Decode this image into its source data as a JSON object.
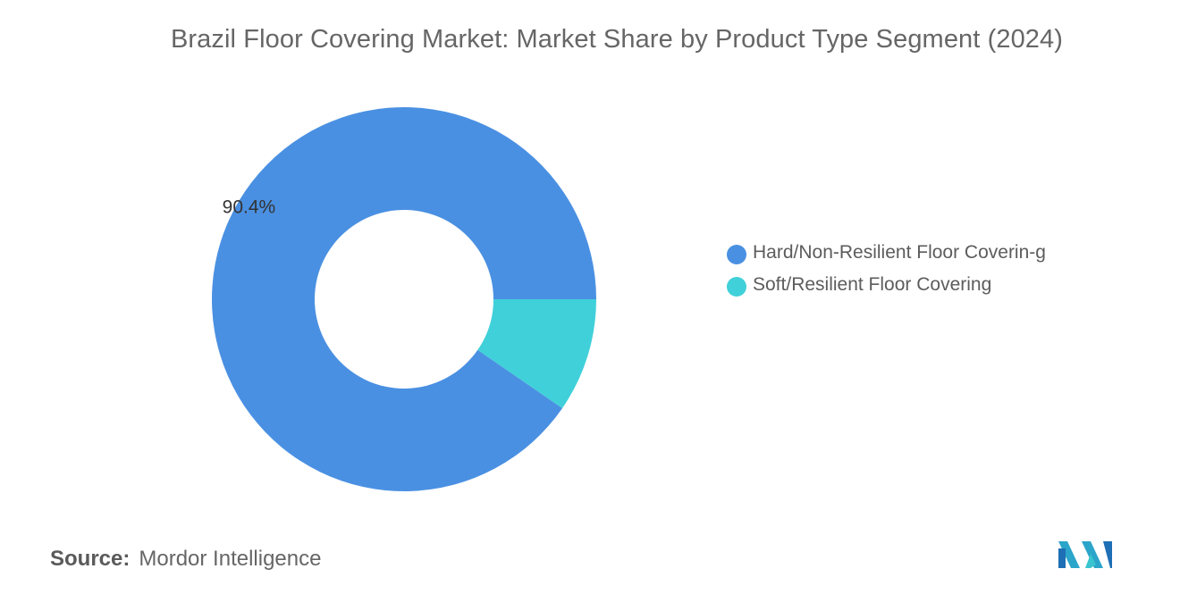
{
  "title": "Brazil Floor Covering Market: Market Share by Product Type Segment (2024)",
  "source": {
    "label": "Source:",
    "value": "Mordor Intelligence"
  },
  "logo": {
    "icon": "mordor-intelligence-logo",
    "colors": [
      "#2ba5c9",
      "#1e6fb5",
      "#39c4cf"
    ]
  },
  "chart_data": {
    "type": "pie",
    "style": "donut",
    "legend_position": "right",
    "slices": [
      {
        "name": "Hard/Non-Resilient Floor Covering",
        "legend_text": "Hard/Non-Resilient Floor Coverin-g",
        "value": 90.4,
        "label": "90.4%",
        "color": "#4a90e2"
      },
      {
        "name": "Soft/Resilient Floor Covering",
        "legend_text": "Soft/Resilient Floor Covering",
        "value": 9.6,
        "label": "",
        "color": "#40d0d9"
      }
    ]
  }
}
